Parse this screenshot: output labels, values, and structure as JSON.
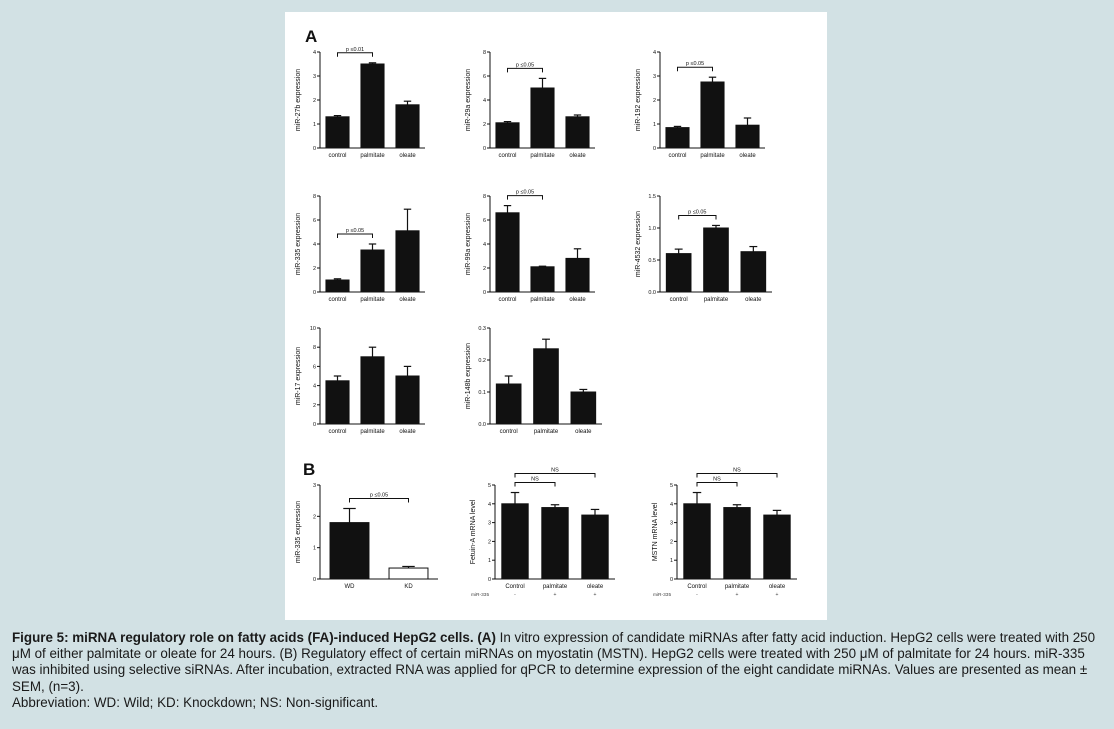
{
  "panel_labels": {
    "a": "A",
    "b": "B"
  },
  "chart_data": [
    {
      "id": "c1",
      "type": "bar",
      "panel": "A",
      "ylabel": "miR-27b expression",
      "categories": [
        "control",
        "palmitate",
        "oleate"
      ],
      "values": [
        1.3,
        3.5,
        1.8
      ],
      "errors": [
        0.05,
        0.05,
        0.15
      ],
      "ylim": [
        0,
        4
      ],
      "yticks": [
        0,
        1,
        2,
        3,
        4
      ],
      "fills": [
        "#111111",
        "#111111",
        "#111111"
      ],
      "annotations": [
        {
          "from": 0,
          "to": 1,
          "label": "p ≤0.01"
        }
      ]
    },
    {
      "id": "c2",
      "type": "bar",
      "panel": "A",
      "ylabel": "miR-29a expression",
      "categories": [
        "control",
        "palmitate",
        "oleate"
      ],
      "values": [
        2.1,
        5.0,
        2.6
      ],
      "errors": [
        0.1,
        0.8,
        0.15
      ],
      "ylim": [
        0,
        8
      ],
      "yticks": [
        0,
        2,
        4,
        6,
        8
      ],
      "fills": [
        "#111111",
        "#111111",
        "#111111"
      ],
      "annotations": [
        {
          "from": 0,
          "to": 1,
          "label": "p ≤0.05"
        }
      ]
    },
    {
      "id": "c3",
      "type": "bar",
      "panel": "A",
      "ylabel": "miR-192 expression",
      "categories": [
        "control",
        "palmitate",
        "oleate"
      ],
      "values": [
        0.85,
        2.75,
        0.95
      ],
      "errors": [
        0.05,
        0.2,
        0.3
      ],
      "ylim": [
        0,
        4
      ],
      "yticks": [
        0,
        1,
        2,
        3,
        4
      ],
      "fills": [
        "#111111",
        "#111111",
        "#111111"
      ],
      "annotations": [
        {
          "from": 0,
          "to": 1,
          "label": "p ≤0.05"
        }
      ]
    },
    {
      "id": "c4",
      "type": "bar",
      "panel": "A",
      "ylabel": "miR-335 expression",
      "categories": [
        "control",
        "palmitate",
        "oleate"
      ],
      "values": [
        1.0,
        3.5,
        5.1
      ],
      "errors": [
        0.1,
        0.5,
        1.8
      ],
      "ylim": [
        0,
        8
      ],
      "yticks": [
        0,
        2,
        4,
        6,
        8
      ],
      "fills": [
        "#111111",
        "#111111",
        "#111111"
      ],
      "annotations": [
        {
          "from": 0,
          "to": 1,
          "label": "p ≤0.05"
        }
      ]
    },
    {
      "id": "c5",
      "type": "bar",
      "panel": "A",
      "ylabel": "miR-99a expression",
      "categories": [
        "control",
        "palmitate",
        "oleate"
      ],
      "values": [
        6.6,
        2.1,
        2.8
      ],
      "errors": [
        0.6,
        0.05,
        0.8
      ],
      "ylim": [
        0,
        8
      ],
      "yticks": [
        0,
        2,
        4,
        6,
        8
      ],
      "fills": [
        "#111111",
        "#111111",
        "#111111"
      ],
      "annotations": [
        {
          "from": 0,
          "to": 1,
          "label": "p ≤0.05"
        }
      ]
    },
    {
      "id": "c6",
      "type": "bar",
      "panel": "A",
      "ylabel": "miR-4532 expression",
      "categories": [
        "control",
        "palmitate",
        "oleate"
      ],
      "values": [
        0.6,
        1.0,
        0.63
      ],
      "errors": [
        0.07,
        0.04,
        0.08
      ],
      "ylim": [
        0,
        1.5
      ],
      "yticks": [
        0,
        0.5,
        1.0,
        1.5
      ],
      "ytick_labels": [
        "0.0",
        "0.5",
        "1.0",
        "1.5"
      ],
      "fills": [
        "#111111",
        "#111111",
        "#111111"
      ],
      "annotations": [
        {
          "from": 0,
          "to": 1,
          "label": "p ≤0.05"
        }
      ]
    },
    {
      "id": "c7",
      "type": "bar",
      "panel": "A",
      "ylabel": "miR-17 expression",
      "categories": [
        "control",
        "palmitate",
        "oleate"
      ],
      "values": [
        4.5,
        7.0,
        5.0
      ],
      "errors": [
        0.5,
        1.0,
        1.0
      ],
      "ylim": [
        0,
        10
      ],
      "yticks": [
        0,
        2,
        4,
        6,
        8,
        10
      ],
      "fills": [
        "#111111",
        "#111111",
        "#111111"
      ],
      "annotations": []
    },
    {
      "id": "c8",
      "type": "bar",
      "panel": "A",
      "ylabel": "miR-148b expression",
      "categories": [
        "control",
        "palmitate",
        "oleate"
      ],
      "values": [
        0.125,
        0.235,
        0.1
      ],
      "errors": [
        0.025,
        0.03,
        0.008
      ],
      "ylim": [
        0,
        0.3
      ],
      "yticks": [
        0,
        0.1,
        0.2,
        0.3
      ],
      "ytick_labels": [
        "0.0",
        "0.1",
        "0.2",
        "0.3"
      ],
      "fills": [
        "#111111",
        "#111111",
        "#111111"
      ],
      "annotations": []
    },
    {
      "id": "c9",
      "type": "bar",
      "panel": "B",
      "ylabel": "miR-335 expression",
      "categories": [
        "WD",
        "KD"
      ],
      "values": [
        1.8,
        0.35
      ],
      "errors": [
        0.45,
        0.05
      ],
      "ylim": [
        0,
        3
      ],
      "yticks": [
        0,
        1,
        2,
        3
      ],
      "fills": [
        "#111111",
        "#ffffff"
      ],
      "annotations": [
        {
          "from": 0,
          "to": 1,
          "label": "p ≤0.05"
        }
      ]
    },
    {
      "id": "c10",
      "type": "bar",
      "panel": "B",
      "ylabel": "Fetuin-A mRNA level",
      "categories": [
        "Control",
        "palmitate",
        "oleate"
      ],
      "row_label": "miR-335",
      "row_values": [
        "-",
        "+",
        "+"
      ],
      "values": [
        4.0,
        3.8,
        3.4
      ],
      "errors": [
        0.6,
        0.15,
        0.3
      ],
      "ylim": [
        0,
        5
      ],
      "yticks": [
        0,
        1,
        2,
        3,
        4,
        5
      ],
      "fills": [
        "#111111",
        "#111111",
        "#111111"
      ],
      "annotations": [
        {
          "from": 0,
          "to": 1,
          "label": "NS"
        },
        {
          "from": 0,
          "to": 2,
          "label": "NS"
        }
      ]
    },
    {
      "id": "c11",
      "type": "bar",
      "panel": "B",
      "ylabel": "MSTN mRNA level",
      "categories": [
        "Control",
        "palmitate",
        "oleate"
      ],
      "row_label": "miR-335",
      "row_values": [
        "-",
        "+",
        "+"
      ],
      "values": [
        4.0,
        3.8,
        3.4
      ],
      "errors": [
        0.6,
        0.15,
        0.25
      ],
      "ylim": [
        0,
        5
      ],
      "yticks": [
        0,
        1,
        2,
        3,
        4,
        5
      ],
      "fills": [
        "#111111",
        "#111111",
        "#111111"
      ],
      "annotations": [
        {
          "from": 0,
          "to": 1,
          "label": "NS"
        },
        {
          "from": 0,
          "to": 2,
          "label": "NS"
        }
      ]
    }
  ],
  "caption": {
    "title": "Figure 5: miRNA regulatory role on fatty acids (FA)-induced HepG2 cells.",
    "part_a_label": "(A)",
    "part_a_text": "In vitro expression of candidate miRNAs after fatty acid induction. HepG2 cells were treated with 250 μM of either palmitate or oleate for 24 hours.",
    "part_b_text": "(B) Regulatory effect of certain miRNAs on myostatin (MSTN). HepG2 cells were treated with 250 μM of palmitate for 24 hours. miR-335 was inhibited using selective siRNAs. After incubation, extracted RNA was applied for qPCR to determine expression of the eight candidate miRNAs. Values are presented as mean ± SEM, (n=3).",
    "abbreviation": "Abbreviation: WD: Wild; KD: Knockdown; NS: Non-significant."
  }
}
